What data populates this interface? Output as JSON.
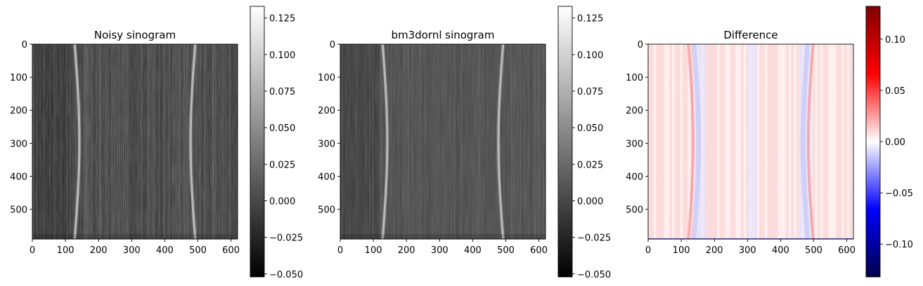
{
  "chart_data": [
    {
      "type": "heatmap",
      "title": "Noisy sinogram",
      "colormap": "gray",
      "xlim": [
        0,
        620
      ],
      "ylim": [
        590,
        0
      ],
      "xticks": [
        0,
        100,
        200,
        300,
        400,
        500,
        600
      ],
      "yticks": [
        0,
        100,
        200,
        300,
        400,
        500
      ],
      "xticklabels": [
        "0",
        "100",
        "200",
        "300",
        "400",
        "500",
        "600"
      ],
      "yticklabels": [
        "0",
        "100",
        "200",
        "300",
        "400",
        "500"
      ],
      "colorbar": {
        "range": [
          -0.052,
          0.133
        ],
        "ticks": [
          -0.05,
          -0.025,
          0.0,
          0.025,
          0.05,
          0.075,
          0.1,
          0.125
        ],
        "ticklabels": [
          "−0.050",
          "−0.025",
          "0.000",
          "0.025",
          "0.050",
          "0.075",
          "0.100",
          "0.125"
        ]
      }
    },
    {
      "type": "heatmap",
      "title": "bm3dornl sinogram",
      "colormap": "gray",
      "xlim": [
        0,
        620
      ],
      "ylim": [
        590,
        0
      ],
      "xticks": [
        0,
        100,
        200,
        300,
        400,
        500,
        600
      ],
      "yticks": [
        0,
        100,
        200,
        300,
        400,
        500
      ],
      "xticklabels": [
        "0",
        "100",
        "200",
        "300",
        "400",
        "500",
        "600"
      ],
      "yticklabels": [
        "0",
        "100",
        "200",
        "300",
        "400",
        "500"
      ],
      "colorbar": {
        "range": [
          -0.052,
          0.133
        ],
        "ticks": [
          -0.05,
          -0.025,
          0.0,
          0.025,
          0.05,
          0.075,
          0.1,
          0.125
        ],
        "ticklabels": [
          "−0.050",
          "−0.025",
          "0.000",
          "0.025",
          "0.050",
          "0.075",
          "0.100",
          "0.125"
        ]
      }
    },
    {
      "type": "heatmap",
      "title": "Difference",
      "colormap": "seismic",
      "xlim": [
        0,
        620
      ],
      "ylim": [
        590,
        0
      ],
      "xticks": [
        0,
        100,
        200,
        300,
        400,
        500,
        600
      ],
      "yticks": [
        0,
        100,
        200,
        300,
        400,
        500
      ],
      "xticklabels": [
        "0",
        "100",
        "200",
        "300",
        "400",
        "500",
        "600"
      ],
      "yticklabels": [
        "0",
        "100",
        "200",
        "300",
        "400",
        "500"
      ],
      "colorbar": {
        "range": [
          -0.132,
          0.132
        ],
        "ticks": [
          -0.1,
          -0.05,
          0.0,
          0.05,
          0.1
        ],
        "ticklabels": [
          "−0.10",
          "−0.05",
          "0.00",
          "0.05",
          "0.10"
        ]
      }
    }
  ]
}
